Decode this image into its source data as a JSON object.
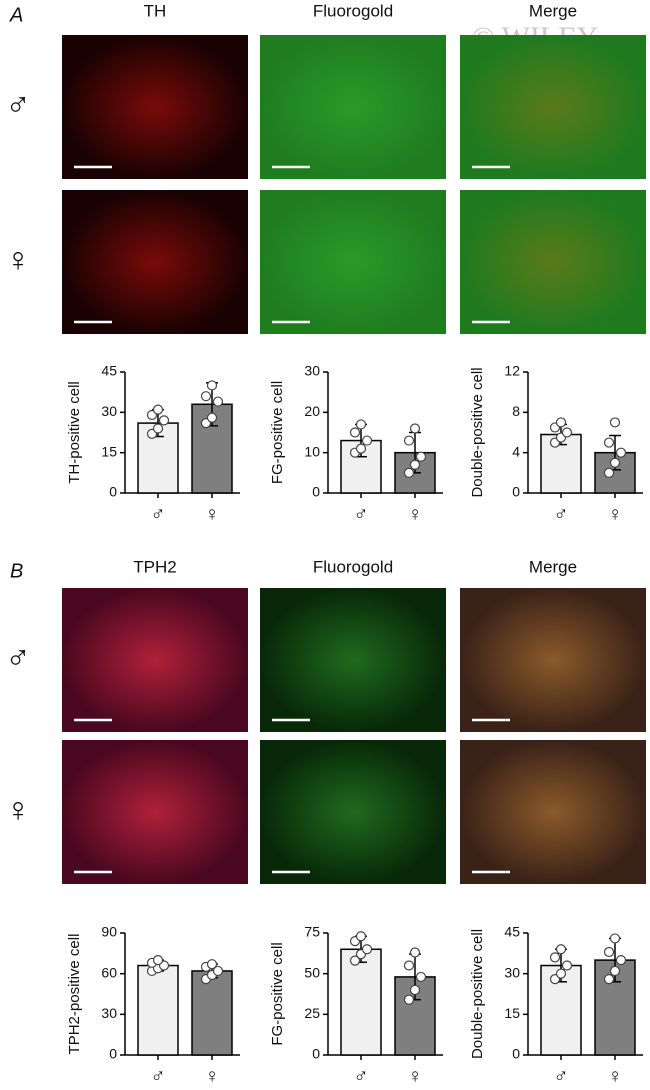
{
  "watermark": "© WILEY",
  "panels": [
    {
      "label": "A",
      "columns": [
        "TH",
        "Fluorogold",
        "Merge"
      ],
      "rows": [
        "♂",
        "♀"
      ]
    },
    {
      "label": "B",
      "columns": [
        "TPH2",
        "Fluorogold",
        "Merge"
      ],
      "rows": [
        "♂",
        "♀"
      ]
    }
  ],
  "chart_data": [
    {
      "type": "bar",
      "y_label": "TH-positive cell",
      "categories": [
        "♂",
        "♀"
      ],
      "values": [
        26,
        33
      ],
      "errors": [
        5,
        8
      ],
      "points": [
        [
          22,
          24,
          27,
          29,
          31
        ],
        [
          26,
          28,
          34,
          36,
          40
        ]
      ],
      "colors": [
        "#f0f0f0",
        "#7f7f7f"
      ],
      "ylim": [
        0,
        45
      ],
      "yticks": [
        0,
        15,
        30,
        45
      ]
    },
    {
      "type": "bar",
      "y_label": "FG-positive cell",
      "categories": [
        "♂",
        "♀"
      ],
      "values": [
        13,
        10
      ],
      "errors": [
        4,
        5
      ],
      "points": [
        [
          10,
          11,
          13,
          15,
          17
        ],
        [
          5,
          7,
          9,
          13,
          16
        ]
      ],
      "colors": [
        "#f0f0f0",
        "#7f7f7f"
      ],
      "ylim": [
        0,
        30
      ],
      "yticks": [
        0,
        10,
        20,
        30
      ]
    },
    {
      "type": "bar",
      "y_label": "Double-positive cell",
      "categories": [
        "♂",
        "♀"
      ],
      "values": [
        5.8,
        4
      ],
      "errors": [
        1,
        1.7
      ],
      "points": [
        [
          5,
          5.5,
          6,
          6.5,
          7
        ],
        [
          2,
          3,
          4,
          5,
          7
        ]
      ],
      "colors": [
        "#f0f0f0",
        "#7f7f7f"
      ],
      "ylim": [
        0,
        12
      ],
      "yticks": [
        0,
        4,
        8,
        12
      ]
    },
    {
      "type": "bar",
      "y_label": "TPH2-positive cell",
      "categories": [
        "♂",
        "♀"
      ],
      "values": [
        66,
        62
      ],
      "errors": [
        4,
        5
      ],
      "points": [
        [
          62,
          64,
          66,
          68,
          70
        ],
        [
          56,
          59,
          62,
          65,
          67
        ]
      ],
      "colors": [
        "#f0f0f0",
        "#7f7f7f"
      ],
      "ylim": [
        0,
        90
      ],
      "yticks": [
        0,
        30,
        60,
        90
      ]
    },
    {
      "type": "bar",
      "y_label": "FG-positive cell",
      "categories": [
        "♂",
        "♀"
      ],
      "values": [
        65,
        48
      ],
      "errors": [
        8,
        14
      ],
      "points": [
        [
          58,
          62,
          65,
          70,
          73
        ],
        [
          34,
          40,
          48,
          55,
          63
        ]
      ],
      "colors": [
        "#f0f0f0",
        "#7f7f7f"
      ],
      "ylim": [
        0,
        75
      ],
      "yticks": [
        0,
        25,
        50,
        75
      ]
    },
    {
      "type": "bar",
      "y_label": "Double-positive cell",
      "categories": [
        "♂",
        "♀"
      ],
      "values": [
        33,
        35
      ],
      "errors": [
        6,
        8
      ],
      "points": [
        [
          28,
          30,
          33,
          36,
          39
        ],
        [
          28,
          31,
          35,
          38,
          43
        ]
      ],
      "colors": [
        "#f0f0f0",
        "#7f7f7f"
      ],
      "ylim": [
        0,
        45
      ],
      "yticks": [
        0,
        15,
        30,
        45
      ]
    }
  ]
}
